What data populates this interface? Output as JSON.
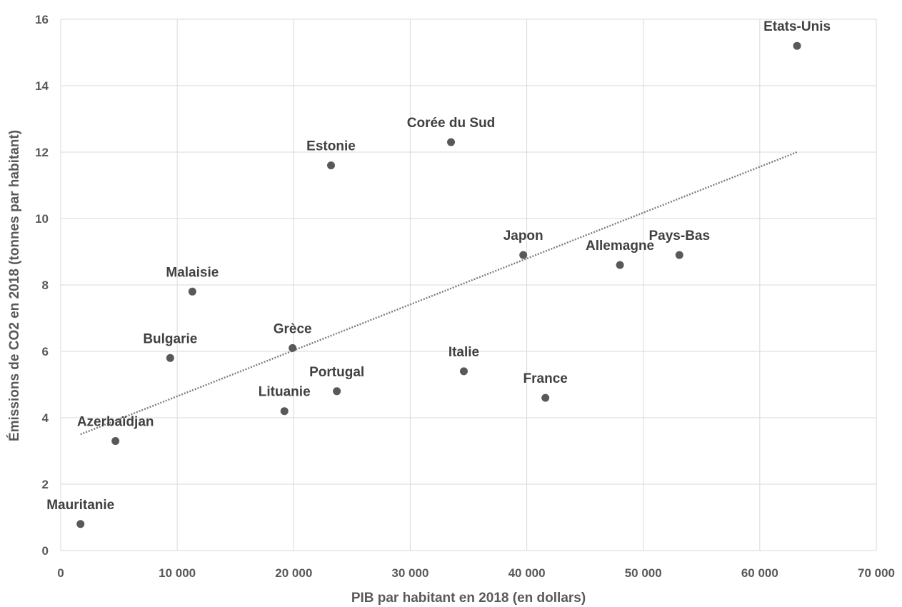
{
  "chart_data": {
    "type": "scatter",
    "title": "",
    "xlabel": "PIB par habitant en 2018 (en dollars)",
    "ylabel": "Émissions de CO2 en 2018 (tonnes par habitant)",
    "xlim": [
      0,
      70000
    ],
    "ylim": [
      0,
      16
    ],
    "x_ticks": [
      0,
      10000,
      20000,
      30000,
      40000,
      50000,
      60000,
      70000
    ],
    "x_tick_labels": [
      "0",
      "10 000",
      "20 000",
      "30 000",
      "40 000",
      "50 000",
      "60 000",
      "70 000"
    ],
    "y_ticks": [
      0,
      2,
      4,
      6,
      8,
      10,
      12,
      14,
      16
    ],
    "y_tick_labels": [
      "0",
      "2",
      "4",
      "6",
      "8",
      "10",
      "12",
      "14",
      "16"
    ],
    "grid": true,
    "legend": "none",
    "point_color": "#595959",
    "points": [
      {
        "label": "Mauritanie",
        "x": 1700,
        "y": 0.8
      },
      {
        "label": "Azerbaïdjan",
        "x": 4700,
        "y": 3.3
      },
      {
        "label": "Bulgarie",
        "x": 9400,
        "y": 5.8
      },
      {
        "label": "Malaisie",
        "x": 11300,
        "y": 7.8
      },
      {
        "label": "Lituanie",
        "x": 19200,
        "y": 4.2
      },
      {
        "label": "Grèce",
        "x": 19900,
        "y": 6.1
      },
      {
        "label": "Estonie",
        "x": 23200,
        "y": 11.6
      },
      {
        "label": "Portugal",
        "x": 23700,
        "y": 4.8
      },
      {
        "label": "Corée du Sud",
        "x": 33500,
        "y": 12.3
      },
      {
        "label": "Italie",
        "x": 34600,
        "y": 5.4
      },
      {
        "label": "Japon",
        "x": 39700,
        "y": 8.9
      },
      {
        "label": "France",
        "x": 41600,
        "y": 4.6
      },
      {
        "label": "Allemagne",
        "x": 48000,
        "y": 8.6
      },
      {
        "label": "Pays-Bas",
        "x": 53100,
        "y": 8.9
      },
      {
        "label": "Etats-Unis",
        "x": 63200,
        "y": 15.2
      }
    ],
    "trendline": {
      "style": "dotted",
      "color": "#7f7f7f",
      "x": [
        1700,
        63200
      ],
      "y": [
        3.5,
        12.0
      ]
    }
  }
}
